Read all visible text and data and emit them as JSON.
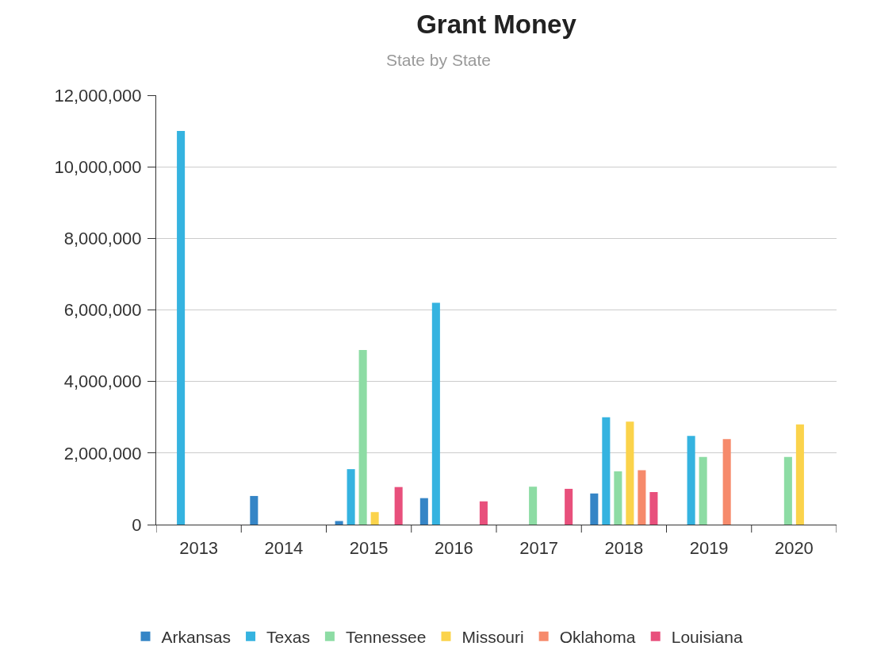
{
  "chart_data": {
    "type": "bar",
    "title": "Grant Money",
    "subtitle": "State by State",
    "categories": [
      "2013",
      "2014",
      "2015",
      "2016",
      "2017",
      "2018",
      "2019",
      "2020"
    ],
    "series": [
      {
        "name": "Arkansas",
        "color": "#3585c6",
        "values": [
          null,
          800000,
          100000,
          740000,
          null,
          870000,
          null,
          null
        ]
      },
      {
        "name": "Texas",
        "color": "#35b3e0",
        "values": [
          11000000,
          null,
          1550000,
          6200000,
          null,
          3000000,
          2480000,
          null
        ]
      },
      {
        "name": "Tennessee",
        "color": "#8ddca4",
        "values": [
          null,
          null,
          4880000,
          null,
          1060000,
          1490000,
          1890000,
          1890000
        ]
      },
      {
        "name": "Missouri",
        "color": "#fbd34b",
        "values": [
          null,
          null,
          350000,
          null,
          null,
          2880000,
          null,
          2800000
        ]
      },
      {
        "name": "Oklahoma",
        "color": "#f68a6b",
        "values": [
          null,
          null,
          null,
          null,
          null,
          1520000,
          2390000,
          null
        ]
      },
      {
        "name": "Louisiana",
        "color": "#e8507c",
        "values": [
          null,
          null,
          1050000,
          650000,
          1000000,
          910000,
          null,
          null
        ]
      }
    ],
    "ylim": [
      0,
      12000000
    ],
    "yticks": [
      {
        "value": 0,
        "label": "0"
      },
      {
        "value": 2000000,
        "label": "2,000,000"
      },
      {
        "value": 4000000,
        "label": "4,000,000"
      },
      {
        "value": 6000000,
        "label": "6,000,000"
      },
      {
        "value": 8000000,
        "label": "8,000,000"
      },
      {
        "value": 10000000,
        "label": "10,000,000"
      },
      {
        "value": 12000000,
        "label": "12,000,000"
      }
    ],
    "grid": "y",
    "legend": "bottom"
  }
}
